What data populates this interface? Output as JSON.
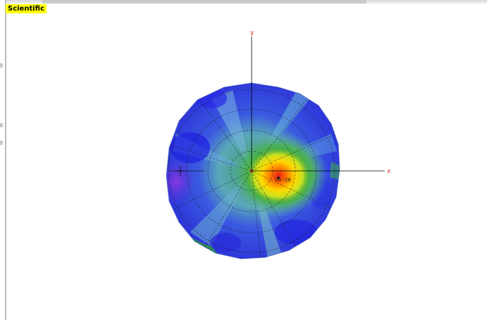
{
  "window": {
    "tab_label": "Scientific"
  },
  "plot": {
    "x_axis_label": "x",
    "y_axis_label": "y",
    "peak_value_label": "Vb -26"
  },
  "colors": {
    "tab_highlight": "#ffff00",
    "axis_label": "#d03030",
    "colormap": [
      "#6a2ad8",
      "#2a2ae8",
      "#3a6ae0",
      "#5aa0c0",
      "#4cc070",
      "#2aa02a",
      "#d8e820",
      "#ffd800",
      "#ff7a00",
      "#e81818"
    ]
  },
  "icons": {
    "axis_origin": "crosshair-icon"
  }
}
